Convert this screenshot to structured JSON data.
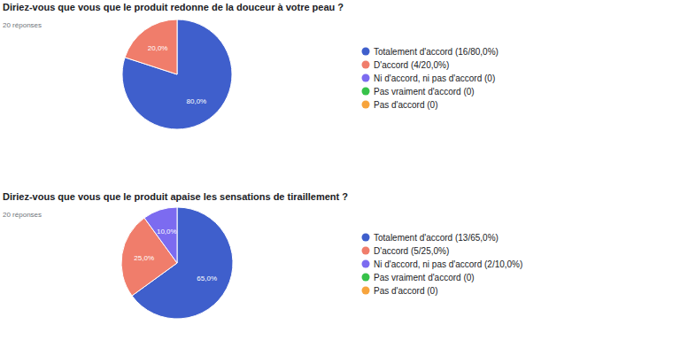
{
  "chart_data": [
    {
      "type": "pie",
      "title": "Diriez-vous que vous que le produit redonne de la douceur à votre peau ?",
      "subtitle": "20 réponses",
      "categories": [
        "Totalement d'accord (16/80,0%)",
        "D'accord (4/20,0%)",
        "Ni d'accord, ni pas d'accord (0)",
        "Pas vraiment d'accord (0)",
        "Pas d'accord (0)"
      ],
      "values": [
        80,
        20,
        0,
        0,
        0
      ],
      "value_labels": [
        "80,0%",
        "20,0%",
        null,
        null,
        null
      ],
      "data_labels": true,
      "colors": [
        "#3f5fcc",
        "#f07d6b",
        "#7c6bf0",
        "#37c24a",
        "#f7a43c"
      ],
      "legend": "right"
    },
    {
      "type": "pie",
      "title": "Diriez-vous que vous que le produit apaise les sensations de tiraillement ?",
      "subtitle": "20 réponses",
      "categories": [
        "Totalement d'accord (13/65,0%)",
        "D'accord (5/25,0%)",
        "Ni d'accord, ni pas d'accord (2/10,0%)",
        "Pas vraiment d'accord (0)",
        "Pas d'accord (0)"
      ],
      "values": [
        65,
        25,
        10,
        0,
        0
      ],
      "value_labels": [
        "65,0%",
        "25,0%",
        "10,0%",
        null,
        null
      ],
      "data_labels": true,
      "colors": [
        "#3f5fcc",
        "#f07d6b",
        "#7c6bf0",
        "#37c24a",
        "#f7a43c"
      ],
      "legend": "right"
    }
  ]
}
